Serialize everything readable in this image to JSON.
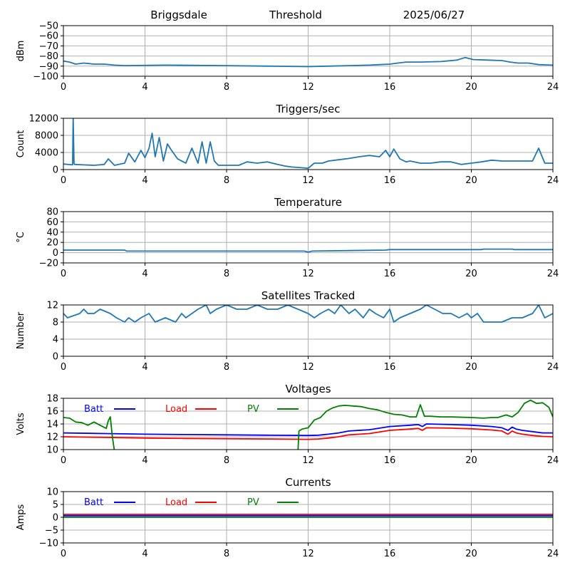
{
  "header": {
    "station": "Briggsdale",
    "mode": "Threshold",
    "date": "2025/06/27"
  },
  "colors": {
    "series_default": "#1f77b4",
    "batt": "#0000ff",
    "load": "#ff0000",
    "pv": "#008000",
    "grid": "#b0b0b0"
  },
  "chart_data": [
    {
      "type": "line",
      "title": "",
      "ylabel": "dBm",
      "ylim": [
        -100,
        -50
      ],
      "yticks": [
        -100,
        -90,
        -80,
        -70,
        -60,
        -50
      ],
      "xlim": [
        0,
        24
      ],
      "xticks": [
        0,
        4,
        8,
        12,
        16,
        20,
        24
      ],
      "grid": true,
      "series": [
        {
          "name": "",
          "color": "#1f77b4",
          "x": [
            0,
            0.3,
            0.6,
            1,
            1.5,
            2,
            2.5,
            3,
            5,
            8,
            10,
            12,
            13,
            14,
            15,
            15.5,
            16,
            16.4,
            16.8,
            17.5,
            18.5,
            19.3,
            19.7,
            20.1,
            20.8,
            21.5,
            21.9,
            22.3,
            22.8,
            23.3,
            24
          ],
          "y": [
            -85,
            -86,
            -88,
            -87,
            -88,
            -88,
            -89,
            -89.5,
            -89,
            -89.5,
            -90,
            -90.5,
            -90,
            -89.5,
            -89,
            -88.5,
            -88,
            -87,
            -86,
            -86,
            -85.5,
            -84,
            -81.5,
            -83.5,
            -84,
            -84.5,
            -86,
            -87,
            -87,
            -88.5,
            -89
          ]
        }
      ]
    },
    {
      "type": "line",
      "title": "Triggers/sec",
      "ylabel": "Count",
      "ylim": [
        0,
        12000
      ],
      "yticks": [
        0,
        4000,
        8000,
        12000
      ],
      "xlim": [
        0,
        24
      ],
      "xticks": [
        0,
        4,
        8,
        12,
        16,
        20,
        24
      ],
      "grid": true,
      "series": [
        {
          "name": "",
          "color": "#1f77b4",
          "x": [
            0,
            0.45,
            0.48,
            0.52,
            0.55,
            1,
            1.5,
            2,
            2.2,
            2.5,
            3,
            3.2,
            3.5,
            3.8,
            4,
            4.2,
            4.35,
            4.5,
            4.7,
            4.9,
            5.1,
            5.3,
            5.6,
            6,
            6.3,
            6.6,
            6.8,
            7,
            7.2,
            7.4,
            7.6,
            7.8,
            8.2,
            8.6,
            9,
            9.5,
            10,
            10.5,
            10.9,
            11.2,
            11.5,
            11.8,
            12,
            12.3,
            12.7,
            13,
            13.5,
            14,
            14.5,
            15,
            15.5,
            15.8,
            16,
            16.2,
            16.5,
            16.8,
            17,
            17.5,
            18,
            18.5,
            19,
            19.5,
            20,
            20.5,
            21,
            21.5,
            22,
            22.5,
            23,
            23.3,
            23.6,
            24
          ],
          "y": [
            1300,
            1100,
            12300,
            1500,
            1200,
            1100,
            1000,
            1200,
            2500,
            1000,
            1500,
            3800,
            1800,
            4500,
            2800,
            5000,
            8500,
            3000,
            7500,
            2000,
            6000,
            4500,
            2500,
            1500,
            5000,
            1500,
            6500,
            1500,
            6500,
            2000,
            1000,
            1000,
            1000,
            1000,
            1800,
            1500,
            1800,
            1200,
            800,
            600,
            500,
            400,
            300,
            1500,
            1500,
            2000,
            2300,
            2600,
            3000,
            3300,
            3000,
            4500,
            3000,
            4800,
            2500,
            1800,
            2000,
            1500,
            1500,
            1800,
            1800,
            1200,
            1500,
            1800,
            2200,
            2000,
            2000,
            2000,
            2000,
            5000,
            1500,
            1500
          ]
        }
      ]
    },
    {
      "type": "line",
      "title": "Temperature",
      "ylabel": "°C",
      "ylim": [
        -20,
        80
      ],
      "yticks": [
        -20,
        0,
        20,
        40,
        60,
        80
      ],
      "xlim": [
        0,
        24
      ],
      "xticks": [
        0,
        4,
        8,
        12,
        16,
        20,
        24
      ],
      "grid": true,
      "series": [
        {
          "name": "",
          "color": "#1f77b4",
          "x": [
            0,
            3,
            3.1,
            11.8,
            12,
            12.2,
            14,
            15.8,
            16,
            20.5,
            20.6,
            22,
            22.1,
            24
          ],
          "y": [
            5,
            5,
            3,
            3,
            1,
            3,
            4,
            5,
            6,
            6,
            7,
            7,
            6,
            6
          ]
        }
      ]
    },
    {
      "type": "line",
      "title": "Satellites Tracked",
      "ylabel": "Number",
      "ylim": [
        0,
        12
      ],
      "yticks": [
        0,
        4,
        8,
        12
      ],
      "xlim": [
        0,
        24
      ],
      "xticks": [
        0,
        4,
        8,
        12,
        16,
        20,
        24
      ],
      "grid": true,
      "series": [
        {
          "name": "",
          "color": "#1f77b4",
          "x": [
            0,
            0.2,
            0.8,
            1,
            1.2,
            1.5,
            1.8,
            2.3,
            2.6,
            3,
            3.2,
            3.5,
            3.8,
            4.2,
            4.5,
            5,
            5.5,
            5.8,
            6,
            6.3,
            6.6,
            7,
            7.2,
            7.5,
            8,
            8.5,
            9,
            9.5,
            10,
            10.5,
            11,
            11.5,
            12,
            12.3,
            12.6,
            13,
            13.3,
            13.6,
            14,
            14.3,
            14.7,
            15,
            15.3,
            15.7,
            16,
            16.2,
            16.5,
            17,
            17.5,
            17.8,
            18.2,
            18.6,
            19,
            19.4,
            19.8,
            20,
            20.3,
            20.6,
            21,
            21.5,
            22,
            22.5,
            23,
            23.3,
            23.6,
            24
          ],
          "y": [
            10,
            9,
            10,
            11,
            10,
            10,
            11,
            10,
            9,
            8,
            9,
            8,
            9,
            10,
            8,
            9,
            8,
            10,
            9,
            10,
            11,
            12,
            10,
            11,
            12,
            11,
            11,
            12,
            11,
            11,
            12,
            11,
            10,
            9,
            10,
            11,
            10,
            12,
            10,
            11,
            9,
            11,
            10,
            9,
            11,
            8,
            9,
            10,
            11,
            12,
            11,
            10,
            10,
            9,
            10,
            9,
            10,
            8,
            8,
            8,
            9,
            9,
            10,
            12,
            9,
            10
          ]
        }
      ]
    },
    {
      "type": "line",
      "title": "Voltages",
      "ylabel": "Volts",
      "ylim": [
        10,
        18
      ],
      "yticks": [
        10,
        12,
        14,
        16,
        18
      ],
      "xlim": [
        0,
        24
      ],
      "xticks": [
        0,
        4,
        8,
        12,
        16,
        20,
        24
      ],
      "grid": true,
      "legend": "top",
      "series": [
        {
          "name": "Batt",
          "color": "#0000ff",
          "x": [
            0,
            2,
            4,
            6,
            8,
            10,
            12,
            12.5,
            13,
            13.5,
            14,
            15,
            16,
            17,
            17.4,
            17.6,
            17.8,
            19,
            20,
            21,
            21.5,
            21.8,
            22,
            22.2,
            22.5,
            23,
            23.5,
            24
          ],
          "y": [
            12.6,
            12.5,
            12.4,
            12.35,
            12.3,
            12.25,
            12.2,
            12.25,
            12.4,
            12.6,
            12.9,
            13.1,
            13.6,
            13.8,
            13.9,
            13.6,
            14,
            13.9,
            13.8,
            13.6,
            13.4,
            13,
            13.5,
            13.2,
            13,
            12.8,
            12.6,
            12.6
          ]
        },
        {
          "name": "Load",
          "color": "#ff0000",
          "x": [
            0,
            2,
            4,
            6,
            8,
            10,
            12,
            12.5,
            13,
            13.5,
            14,
            15,
            16,
            17,
            17.4,
            17.6,
            17.8,
            19,
            20,
            21,
            21.5,
            21.8,
            22,
            22.2,
            22.5,
            23,
            23.5,
            24
          ],
          "y": [
            12,
            11.9,
            11.8,
            11.75,
            11.7,
            11.65,
            11.6,
            11.65,
            11.8,
            12,
            12.3,
            12.5,
            13,
            13.2,
            13.3,
            13,
            13.4,
            13.35,
            13.25,
            13.05,
            12.9,
            12.4,
            12.9,
            12.6,
            12.4,
            12.2,
            12.05,
            12
          ]
        },
        {
          "name": "PV",
          "color": "#008000",
          "x": [
            0,
            0.3,
            0.6,
            0.9,
            1.2,
            1.5,
            1.8,
            2.1,
            2.2,
            2.3,
            2.4,
            2.5,
            11.5,
            11.55,
            11.7,
            12,
            12.3,
            12.6,
            12.9,
            13.2,
            13.5,
            13.8,
            14.2,
            14.6,
            15,
            15.4,
            15.8,
            16.2,
            16.6,
            17,
            17.3,
            17.5,
            17.7,
            18,
            18.5,
            19,
            20,
            20.6,
            21,
            21.3,
            21.7,
            22,
            22.3,
            22.6,
            22.9,
            23.2,
            23.5,
            23.8,
            24
          ],
          "y": [
            15,
            14.9,
            14.3,
            14.2,
            13.8,
            14.3,
            13.8,
            13.3,
            14.5,
            15.1,
            12,
            9.8,
            9.8,
            12.9,
            13.2,
            13.4,
            14.6,
            15,
            16,
            16.5,
            16.8,
            16.9,
            16.8,
            16.7,
            16.4,
            16.2,
            15.8,
            15.5,
            15.4,
            15.1,
            15.1,
            17,
            15.2,
            15.2,
            15.1,
            15.1,
            15.0,
            14.9,
            15.0,
            15.0,
            15.4,
            15.1,
            15.8,
            17.2,
            17.7,
            17.2,
            17.3,
            16.6,
            15.1
          ]
        }
      ]
    },
    {
      "type": "line",
      "title": "Currents",
      "ylabel": "Amps",
      "ylim": [
        -10,
        10
      ],
      "yticks": [
        -10,
        -5,
        0,
        5,
        10
      ],
      "xlim": [
        0,
        24
      ],
      "xticks": [
        0,
        4,
        8,
        12,
        16,
        20,
        24
      ],
      "grid": true,
      "legend": "top",
      "series": [
        {
          "name": "Batt",
          "color": "#0000ff",
          "x": [
            0,
            24
          ],
          "y": [
            0.6,
            0.6
          ]
        },
        {
          "name": "Load",
          "color": "#ff0000",
          "x": [
            0,
            24
          ],
          "y": [
            1.1,
            1.1
          ]
        },
        {
          "name": "PV",
          "color": "#008000",
          "x": [
            0,
            24
          ],
          "y": [
            0,
            0
          ]
        }
      ]
    }
  ]
}
